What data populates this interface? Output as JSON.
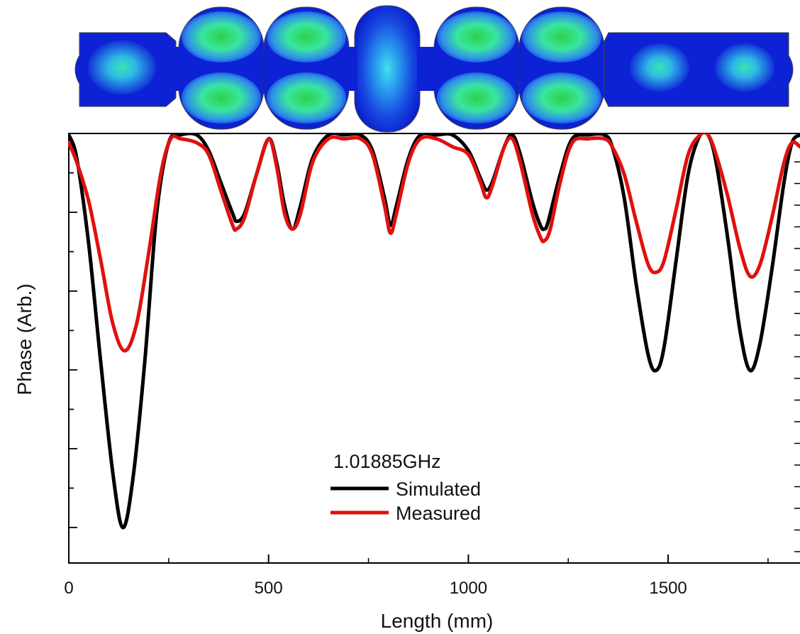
{
  "chart_data": {
    "type": "line",
    "title": "",
    "xlabel": "Length (mm)",
    "ylabel": "Phase (Arb.)",
    "xlim": [
      0,
      1830
    ],
    "ylim": [
      0,
      1
    ],
    "x_ticks": [
      0,
      500,
      1000,
      1500
    ],
    "x_tick_labels": [
      "0",
      "500",
      "1000",
      "1500"
    ],
    "grid": false,
    "legend": {
      "placement": "bottom-center",
      "title": "1.01885GHz",
      "entries": [
        "Simulated",
        "Measured"
      ]
    },
    "series": [
      {
        "name": "Simulated",
        "color": "#000000",
        "x": [
          0,
          20,
          50,
          80,
          110,
          135,
          160,
          190,
          220,
          250,
          280,
          320,
          350,
          380,
          410,
          420,
          440,
          470,
          500,
          520,
          540,
          560,
          580,
          610,
          650,
          690,
          730,
          760,
          790,
          805,
          820,
          850,
          880,
          920,
          960,
          1000,
          1030,
          1045,
          1060,
          1090,
          1110,
          1130,
          1160,
          1180,
          1190,
          1200,
          1230,
          1260,
          1300,
          1340,
          1360,
          1390,
          1420,
          1450,
          1470,
          1490,
          1520,
          1550,
          1580,
          1600,
          1620,
          1650,
          1680,
          1705,
          1730,
          1760,
          1790,
          1810,
          1830
        ],
        "y": [
          1.0,
          0.94,
          0.72,
          0.42,
          0.14,
          0.0,
          0.12,
          0.42,
          0.8,
          0.98,
          1.0,
          1.0,
          0.96,
          0.88,
          0.8,
          0.78,
          0.8,
          0.9,
          0.99,
          0.93,
          0.82,
          0.76,
          0.82,
          0.94,
          1.0,
          1.0,
          1.0,
          0.96,
          0.84,
          0.77,
          0.82,
          0.94,
          1.0,
          1.0,
          1.0,
          0.96,
          0.89,
          0.86,
          0.88,
          0.97,
          1.0,
          0.95,
          0.83,
          0.77,
          0.76,
          0.78,
          0.9,
          0.99,
          1.0,
          1.0,
          0.97,
          0.84,
          0.62,
          0.44,
          0.4,
          0.46,
          0.68,
          0.9,
          1.0,
          1.0,
          0.93,
          0.73,
          0.5,
          0.4,
          0.47,
          0.66,
          0.88,
          0.98,
          1.0
        ]
      },
      {
        "name": "Measured",
        "color": "#e01010",
        "x": [
          0,
          20,
          50,
          80,
          110,
          140,
          170,
          200,
          230,
          255,
          280,
          320,
          350,
          380,
          410,
          420,
          440,
          470,
          500,
          520,
          540,
          560,
          580,
          610,
          650,
          690,
          730,
          760,
          790,
          805,
          820,
          850,
          880,
          920,
          960,
          1000,
          1030,
          1045,
          1060,
          1090,
          1110,
          1130,
          1160,
          1180,
          1190,
          1205,
          1230,
          1260,
          1300,
          1340,
          1360,
          1390,
          1420,
          1450,
          1470,
          1490,
          1520,
          1550,
          1580,
          1600,
          1620,
          1650,
          1680,
          1705,
          1730,
          1760,
          1790,
          1810,
          1830
        ],
        "y": [
          0.98,
          0.93,
          0.83,
          0.68,
          0.52,
          0.45,
          0.52,
          0.7,
          0.9,
          0.99,
          0.99,
          0.98,
          0.95,
          0.86,
          0.77,
          0.76,
          0.79,
          0.9,
          0.99,
          0.92,
          0.8,
          0.76,
          0.8,
          0.93,
          0.99,
          0.99,
          0.99,
          0.95,
          0.82,
          0.75,
          0.8,
          0.93,
          0.99,
          0.99,
          0.97,
          0.95,
          0.88,
          0.84,
          0.87,
          0.97,
          0.99,
          0.93,
          0.8,
          0.74,
          0.73,
          0.76,
          0.88,
          0.98,
          0.99,
          0.99,
          0.97,
          0.9,
          0.78,
          0.67,
          0.65,
          0.68,
          0.81,
          0.95,
          1.0,
          1.0,
          0.95,
          0.84,
          0.71,
          0.64,
          0.67,
          0.79,
          0.93,
          0.98,
          0.97
        ]
      }
    ]
  },
  "field_map": {
    "description_colors": [
      "#0a1fd6",
      "#2f8dea",
      "#38e6a0",
      "#2ed14a"
    ]
  }
}
